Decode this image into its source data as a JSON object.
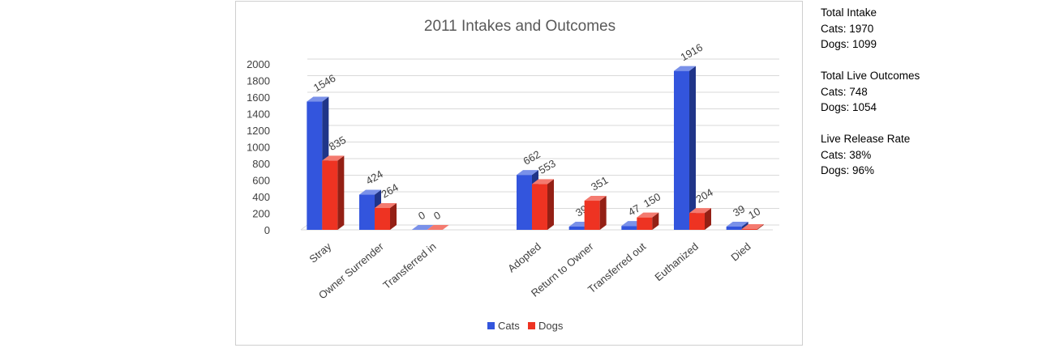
{
  "chart_data": {
    "type": "bar",
    "title": "2011 Intakes and Outcomes",
    "categories": [
      "Stray",
      "Owner Surrender",
      "Transferred in",
      "",
      "Adopted",
      "Return to Owner",
      "Transferred out",
      "Euthanized",
      "Died"
    ],
    "series": [
      {
        "name": "Cats",
        "color": "#3355dd",
        "values": [
          1546,
          424,
          0,
          null,
          662,
          39,
          47,
          1916,
          39
        ]
      },
      {
        "name": "Dogs",
        "color": "#ee3322",
        "values": [
          835,
          264,
          0,
          null,
          553,
          351,
          150,
          204,
          10
        ]
      }
    ],
    "ylim": [
      0,
      2000
    ],
    "yticks": [
      0,
      200,
      400,
      600,
      800,
      1000,
      1200,
      1400,
      1600,
      1800,
      2000
    ],
    "grid": true,
    "legend_position": "bottom",
    "data_labels": true,
    "style": "3d-clustered-column"
  },
  "notes": {
    "intake": {
      "heading": "Total Intake",
      "cats": "Cats: 1970",
      "dogs": "Dogs: 1099"
    },
    "live_outcomes": {
      "heading": "Total Live Outcomes",
      "cats": "Cats: 748",
      "dogs": "Dogs: 1054"
    },
    "release_rate": {
      "heading": "Live Release Rate",
      "cats": "Cats: 38%",
      "dogs": "Dogs: 96%"
    }
  }
}
